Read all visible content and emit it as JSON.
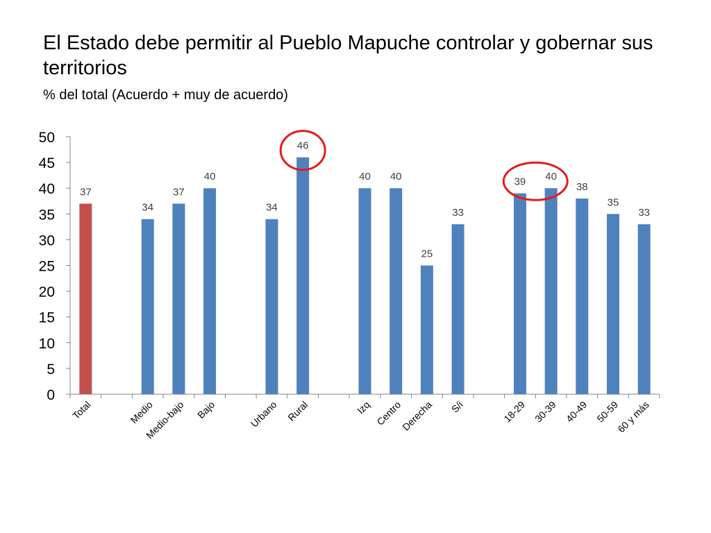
{
  "header": {
    "title": "El Estado debe permitir al Pueblo Mapuche controlar y gobernar sus territorios",
    "subtitle": "% del total (Acuerdo + muy de acuerdo)"
  },
  "chart_data": {
    "type": "bar",
    "categories": [
      "Total",
      "",
      "Medio",
      "Medio-bajo",
      "Bajo",
      "",
      "Urbano",
      "Rural",
      "",
      "Izq",
      "Centro",
      "Derecha",
      "S/i",
      "",
      "18-29",
      "30-39",
      "40-49",
      "50-59",
      "60 y más"
    ],
    "values": [
      37,
      null,
      34,
      37,
      40,
      null,
      34,
      46,
      null,
      40,
      40,
      25,
      33,
      null,
      39,
      40,
      38,
      35,
      33
    ],
    "data_labels": [
      "37",
      "",
      "34",
      "37",
      "40",
      "",
      "34",
      "46",
      "",
      "40",
      "40",
      "25",
      "33",
      "",
      "39",
      "40",
      "38",
      "35",
      "33"
    ],
    "highlight_index": 0,
    "circled": [
      "Rural",
      "18-29",
      "30-39"
    ],
    "ylim": [
      0,
      50
    ],
    "yticks": [
      "0",
      "5",
      "10",
      "15",
      "20",
      "25",
      "30",
      "35",
      "40",
      "45",
      "50"
    ],
    "grid": false,
    "legend": "none",
    "colors": {
      "default": "#4F81BD",
      "highlight": "#C0504D",
      "circle": "#E41B1B",
      "axis": "#868686"
    }
  }
}
